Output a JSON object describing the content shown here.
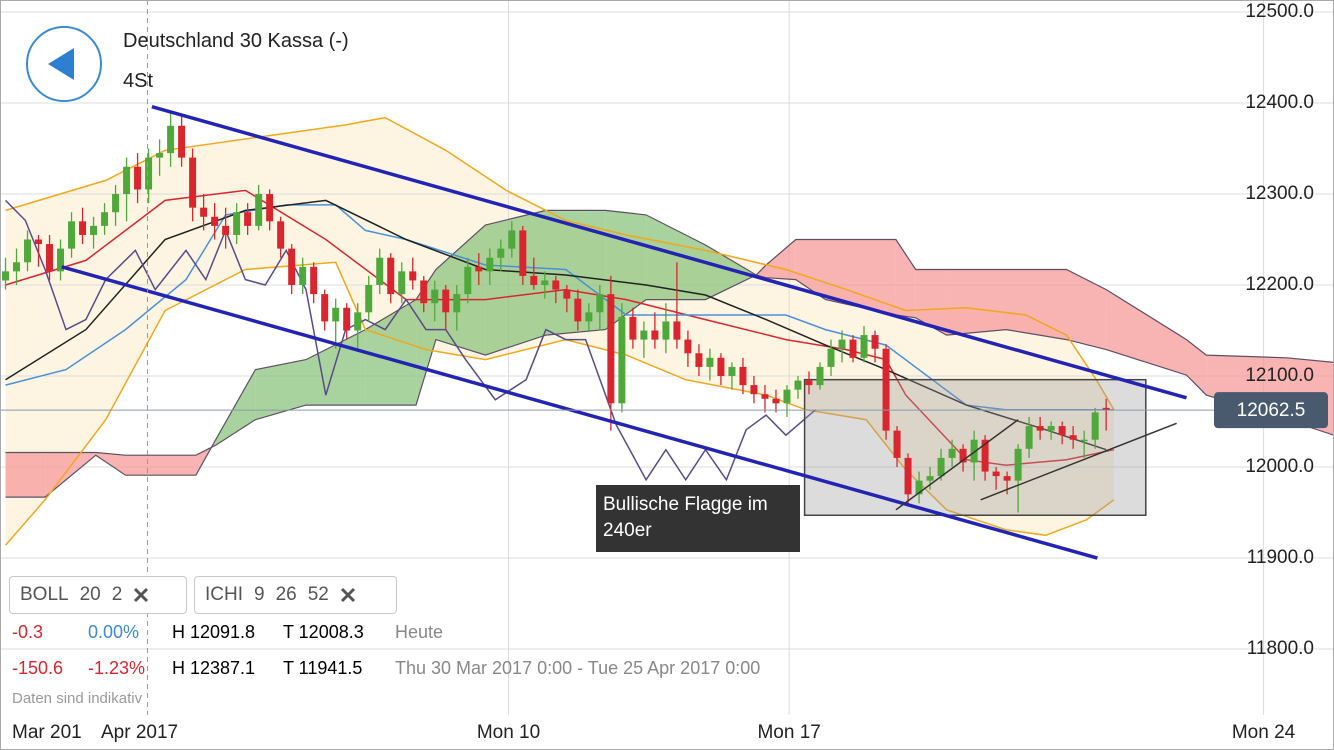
{
  "header": {
    "title": "Deutschland 30 Kassa (-)",
    "timeframe": "4St"
  },
  "chart_data": {
    "type": "candlestick",
    "xlim": [
      -0.5,
      120.7
    ],
    "ylim": [
      11727.5,
      12513.2
    ],
    "xticks": [
      {
        "value": 45.7,
        "label": "Mon 10"
      },
      {
        "value": 71.2,
        "label": "Mon 17"
      },
      {
        "value": 114.3,
        "label": "Mon 24"
      }
    ],
    "yticks": [
      {
        "value": 11800,
        "label": "11800.0"
      },
      {
        "value": 11900,
        "label": "11900.0"
      },
      {
        "value": 12000,
        "label": "12000.0"
      },
      {
        "value": 12100,
        "label": "12100.0"
      },
      {
        "value": 12200,
        "label": "12200.0"
      },
      {
        "value": 12300,
        "label": "12300.0"
      },
      {
        "value": 12400,
        "label": "12400.0"
      },
      {
        "value": 12500,
        "label": "12500.0"
      }
    ],
    "grid": true,
    "first_label": "Mar 201",
    "crosshair": {
      "x": 12.9,
      "label": "Apr 2017"
    },
    "current_price": 12062.5,
    "candles": {
      "up_color": "#4fa83a",
      "down_color": "#d9262e",
      "x": [
        0,
        1,
        2,
        3,
        4,
        5,
        6,
        7,
        8,
        9,
        10,
        11,
        12,
        13,
        14,
        15,
        16,
        17,
        18,
        19,
        20,
        21,
        22,
        23,
        24,
        25,
        26,
        27,
        28,
        29,
        30,
        31,
        32,
        33,
        34,
        35,
        36,
        37,
        38,
        39,
        40,
        41,
        42,
        43,
        44,
        45,
        46,
        47,
        48,
        49,
        50,
        51,
        52,
        53,
        54,
        55,
        56,
        57,
        58,
        59,
        60,
        61,
        62,
        63,
        64,
        65,
        66,
        67,
        68,
        69,
        70,
        71,
        72,
        73,
        74,
        75,
        76,
        77,
        78,
        79,
        80,
        81,
        82,
        83,
        84,
        85,
        86,
        87,
        88,
        89,
        90,
        91,
        92,
        93,
        94,
        95,
        96,
        97,
        98,
        99,
        100
      ],
      "open": [
        12205,
        12215,
        12225,
        12250,
        12245,
        12215,
        12240,
        12270,
        12255,
        12265,
        12280,
        12300,
        12330,
        12305,
        12340,
        12345,
        12375,
        12340,
        12285,
        12275,
        12265,
        12255,
        12280,
        12265,
        12300,
        12270,
        12240,
        12200,
        12220,
        12190,
        12160,
        12175,
        12150,
        12170,
        12200,
        12230,
        12190,
        12215,
        12205,
        12180,
        12195,
        12170,
        12190,
        12220,
        12215,
        12230,
        12240,
        12260,
        12210,
        12200,
        12205,
        12195,
        12185,
        12160,
        12170,
        12190,
        12070,
        12165,
        12140,
        12150,
        12140,
        12160,
        12140,
        12125,
        12110,
        12120,
        12100,
        12110,
        12090,
        12080,
        12075,
        12070,
        12085,
        12095,
        12090,
        12110,
        12130,
        12140,
        12120,
        12145,
        12130,
        12040,
        12010,
        11970,
        11985,
        11990,
        12010,
        12020,
        12005,
        12030,
        11995,
        11990,
        11985,
        12020,
        12045,
        12040,
        12045,
        12035,
        12030,
        12030,
        12065
      ],
      "high": [
        12230,
        12240,
        12260,
        12255,
        12255,
        12250,
        12280,
        12285,
        12275,
        12290,
        12310,
        12340,
        12345,
        12350,
        12360,
        12390,
        12385,
        12350,
        12300,
        12290,
        12285,
        12290,
        12290,
        12310,
        12305,
        12275,
        12245,
        12230,
        12225,
        12195,
        12185,
        12180,
        12180,
        12210,
        12240,
        12235,
        12225,
        12230,
        12210,
        12205,
        12200,
        12200,
        12230,
        12235,
        12240,
        12250,
        12270,
        12265,
        12230,
        12215,
        12210,
        12200,
        12195,
        12180,
        12200,
        12210,
        12180,
        12175,
        12160,
        12170,
        12180,
        12225,
        12150,
        12135,
        12130,
        12125,
        12115,
        12120,
        12100,
        12090,
        12085,
        12090,
        12100,
        12105,
        12115,
        12140,
        12150,
        12145,
        12155,
        12150,
        12135,
        12045,
        12015,
        11995,
        12000,
        12020,
        12030,
        12025,
        12040,
        12035,
        12000,
        11995,
        12025,
        12055,
        12055,
        12050,
        12050,
        12045,
        12040,
        12065,
        12075
      ],
      "low": [
        12195,
        12200,
        12215,
        12220,
        12205,
        12205,
        12230,
        12245,
        12240,
        12255,
        12265,
        12270,
        12290,
        12290,
        12320,
        12330,
        12330,
        12270,
        12260,
        12250,
        12240,
        12245,
        12255,
        12260,
        12260,
        12230,
        12190,
        12190,
        12180,
        12150,
        12130,
        12140,
        12130,
        12160,
        12190,
        12180,
        12180,
        12195,
        12170,
        12160,
        12150,
        12150,
        12180,
        12200,
        12200,
        12215,
        12230,
        12200,
        12195,
        12185,
        12180,
        12170,
        12150,
        12150,
        12150,
        12040,
        12060,
        12130,
        12120,
        12130,
        12125,
        12130,
        12110,
        12100,
        12095,
        12090,
        12085,
        12080,
        12070,
        12060,
        12060,
        12055,
        12075,
        12080,
        12085,
        12100,
        12115,
        12115,
        12115,
        12115,
        12030,
        12000,
        11960,
        11960,
        11975,
        11985,
        12000,
        11995,
        11985,
        11985,
        11975,
        11970,
        11950,
        12010,
        12030,
        12030,
        12025,
        12020,
        12010,
        12020,
        12040
      ],
      "close": [
        12215,
        12225,
        12250,
        12245,
        12215,
        12240,
        12270,
        12255,
        12265,
        12280,
        12300,
        12330,
        12305,
        12340,
        12345,
        12375,
        12340,
        12285,
        12275,
        12265,
        12255,
        12280,
        12265,
        12300,
        12270,
        12240,
        12200,
        12220,
        12190,
        12160,
        12175,
        12150,
        12170,
        12200,
        12230,
        12190,
        12215,
        12205,
        12180,
        12195,
        12170,
        12190,
        12220,
        12215,
        12230,
        12240,
        12260,
        12210,
        12200,
        12205,
        12195,
        12185,
        12160,
        12170,
        12190,
        12070,
        12165,
        12140,
        12150,
        12140,
        12160,
        12140,
        12125,
        12110,
        12120,
        12100,
        12110,
        12090,
        12080,
        12075,
        12070,
        12085,
        12095,
        12090,
        12110,
        12130,
        12140,
        12120,
        12145,
        12130,
        12040,
        12010,
        11970,
        11985,
        11990,
        12010,
        12020,
        12005,
        12030,
        11995,
        11990,
        11985,
        12020,
        12045,
        12040,
        12045,
        12035,
        12030,
        12030,
        12060,
        12062.5
      ]
    },
    "bollinger": {
      "band_color": "#f0a81c",
      "middle_color": "#d9262e",
      "fill": "#fdf5e2",
      "upper": {
        "x": [
          0,
          9.1,
          14.5,
          30.9,
          34.5,
          40,
          45.5,
          50.9,
          56.4,
          63.6,
          70.9,
          76.4,
          81.8,
          87.3,
          92.7,
          96.4,
          99.1,
          100.7
        ],
        "y": [
          12282,
          12315,
          12348,
          12376,
          12384,
          12348,
          12304,
          12271,
          12255,
          12238,
          12217,
          12195,
          12172,
          12175,
          12167,
          12145,
          12096,
          12063
        ]
      },
      "middle": {
        "x": [
          0,
          7.3,
          14.5,
          21.8,
          29.1,
          36.4,
          43.6,
          50.9,
          56.4,
          63.6,
          70.9,
          76.4,
          80,
          81.8,
          87.3,
          90.9,
          96.4,
          100.7
        ],
        "y": [
          12200,
          12227,
          12293,
          12304,
          12250,
          12184,
          12184,
          12195,
          12184,
          12162,
          12140,
          12129,
          12118,
          12079,
          12008,
          12002,
          12008,
          12019
        ]
      },
      "lower": {
        "x": [
          0,
          3.6,
          9.1,
          14.5,
          21.8,
          30,
          32.7,
          38.2,
          43.6,
          50.9,
          56.4,
          61.8,
          69.1,
          72.7,
          78.2,
          81.8,
          85.5,
          90.9,
          94.5,
          98.2,
          100.7
        ],
        "y": [
          11914,
          11964,
          12052,
          12172,
          12217,
          12225,
          12151,
          12129,
          12118,
          12140,
          12123,
          12096,
          12079,
          12063,
          12052,
          11997,
          11953,
          11931,
          11925,
          11942,
          11964
        ]
      }
    },
    "ichimoku": {
      "tenkan": {
        "color": "#4a90d9",
        "x": [
          0,
          5.5,
          10.9,
          16.4,
          20,
          25.5,
          30,
          32.7,
          36.4,
          43.6,
          50.9,
          56.4,
          63.6,
          70.9,
          74.5,
          80,
          87.3,
          90.9,
          100.7
        ],
        "y": [
          12090,
          12107,
          12151,
          12206,
          12277,
          12288,
          12288,
          12260,
          12250,
          12222,
          12217,
          12167,
          12167,
          12167,
          12151,
          12134,
          12068,
          12063,
          12063
        ]
      },
      "kijun": {
        "color": "#222222",
        "x": [
          0,
          7.3,
          14.5,
          21.8,
          29.1,
          36.4,
          43.6,
          50.9,
          58.2,
          63.6,
          69.1,
          74.5,
          80,
          87.3,
          94.5,
          100
        ],
        "y": [
          12096,
          12151,
          12250,
          12282,
          12293,
          12250,
          12217,
          12211,
          12200,
          12189,
          12162,
          12134,
          12107,
          12068,
          12041,
          12019
        ]
      },
      "chikou": {
        "color": "#5a4a8a",
        "x": [
          0,
          1.8,
          3.6,
          5.5,
          7.3,
          9.1,
          11.8,
          13.6,
          16.4,
          18.2,
          20,
          21.8,
          23.6,
          25.5,
          27.3,
          29.1,
          30.9,
          32.7,
          34.5,
          36.4,
          38.2,
          40,
          41.8,
          44.5,
          47.3,
          49.1,
          50.9,
          52.7,
          55.5,
          58.2,
          60,
          61.8,
          63.6,
          65.5,
          67.3,
          69.1,
          70.9,
          73.6
        ],
        "y": [
          12293,
          12271,
          12217,
          12151,
          12162,
          12206,
          12238,
          12195,
          12238,
          12206,
          12260,
          12206,
          12200,
          12238,
          12195,
          12079,
          12151,
          12162,
          12151,
          12184,
          12151,
          12151,
          12118,
          12074,
          12096,
          12151,
          12140,
          12140,
          12046,
          11986,
          12019,
          11986,
          12019,
          11986,
          12041,
          12057,
          12035,
          12063
        ]
      },
      "cloud": {
        "up_color": "#8cc47e",
        "down_color": "#f59a9a",
        "edge_color": "#5d5066",
        "x": [
          0,
          3.6,
          8.2,
          10.9,
          17.3,
          19.1,
          22.7,
          27.3,
          32.7,
          37.3,
          39.1,
          43.6,
          49.1,
          54.5,
          58.2,
          63.6,
          68.2,
          69.1,
          71.8,
          74.5,
          80.9,
          82.7,
          85.5,
          90.9,
          96.4,
          100,
          107.3,
          109.1,
          116.4,
          120.7
        ],
        "span_a": [
          11967,
          11967,
          12013,
          11991,
          11991,
          12030,
          12107,
          12118,
          12151,
          12184,
          12217,
          12266,
          12282,
          12282,
          12277,
          12244,
          12211,
          12208,
          12206,
          12184,
          12167,
          12164,
          12145,
          12151,
          12140,
          12129,
          12101,
          12079,
          12052,
          12035
        ],
        "span_b": [
          12016,
          12016,
          12016,
          12013,
          12013,
          12024,
          12052,
          12068,
          12068,
          12068,
          12140,
          12123,
          12145,
          12151,
          12184,
          12184,
          12211,
          12222,
          12250,
          12250,
          12250,
          12217,
          12217,
          12217,
          12217,
          12195,
          12140,
          12123,
          12120,
          12115
        ]
      }
    },
    "trend_lines": {
      "color": "#2424b4",
      "lines": [
        {
          "x": [
            13.3,
            107.3
          ],
          "y": [
            12396,
            12076
          ]
        },
        {
          "x": [
            5.1,
            99.2
          ],
          "y": [
            12220,
            11900
          ]
        }
      ]
    },
    "flag_lines": {
      "color": "#333333",
      "lines": [
        {
          "x": [
            80.9,
            92.0
          ],
          "y": [
            11953,
            12052
          ]
        },
        {
          "x": [
            88.6,
            106.4
          ],
          "y": [
            11964,
            12048
          ]
        }
      ]
    },
    "flag_box": {
      "x": [
        72.6,
        103.6
      ],
      "y": [
        12096,
        11947
      ],
      "fill": "#9a9a9a",
      "stroke": "#444444"
    },
    "annotation": "Bullische Flagge im 240er"
  },
  "indicators": [
    {
      "name": "BOLL",
      "params": [
        20,
        2
      ]
    },
    {
      "name": "ICHI",
      "params": [
        9,
        26,
        52
      ]
    }
  ],
  "stats": [
    {
      "change": "-0.3",
      "change_pct": "0.00%",
      "high": "H 12091.8",
      "low": "T 12008.3",
      "period": "Heute"
    },
    {
      "change": "-150.6",
      "change_pct": "-1.23%",
      "high": "H 12387.1",
      "low": "T 11941.5",
      "period": "Thu 30 Mar 2017 0:00 - Tue 25 Apr 2017 0:00"
    }
  ],
  "footnote": "Daten sind indikativ"
}
